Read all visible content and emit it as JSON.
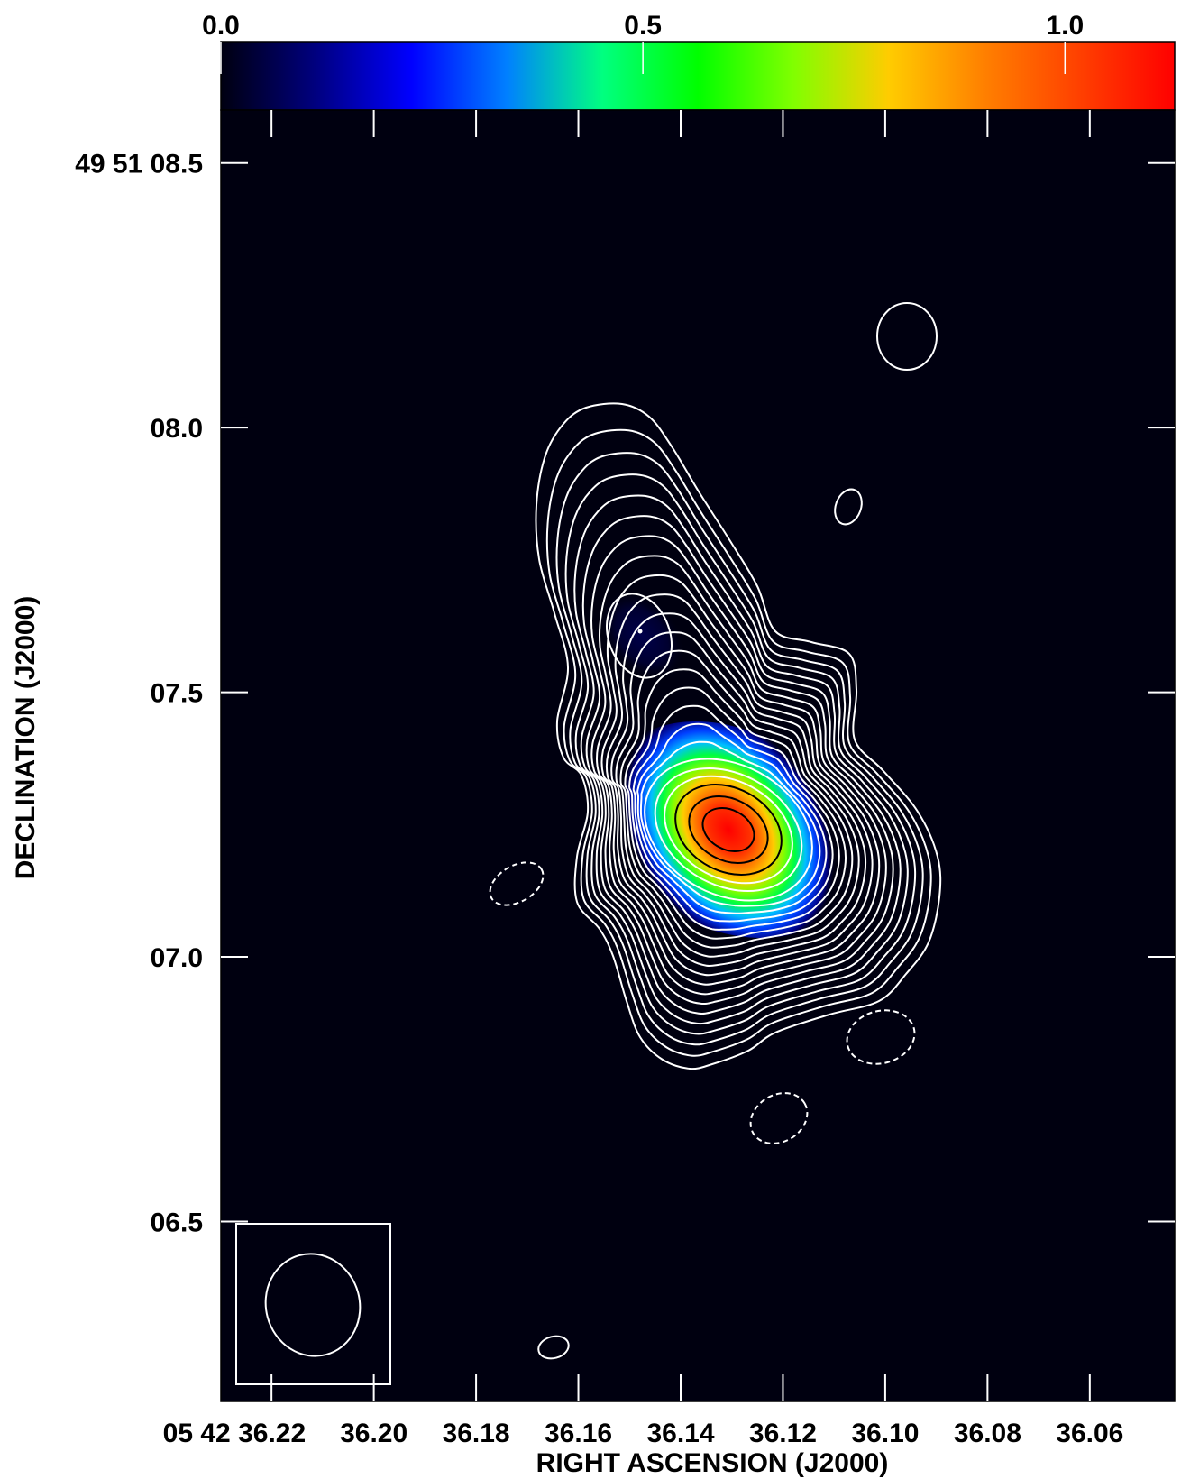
{
  "chart_data": {
    "type": "heatmap",
    "title": "",
    "colorbar": {
      "tick_labels": [
        "0.0",
        "0.5",
        "1.0"
      ],
      "ticks": [
        0.0,
        0.5,
        1.0
      ],
      "range": [
        0.0,
        1.13
      ],
      "colormap": [
        "#000010",
        "#000080",
        "#0000ff",
        "#0080ff",
        "#00ff80",
        "#00ff00",
        "#80ff00",
        "#ffcc00",
        "#ff8000",
        "#ff4000",
        "#ff0000"
      ]
    },
    "xlabel": "RIGHT ASCENSION (J2000)",
    "ylabel": "DECLINATION (J2000)",
    "x_axis": {
      "unit": "seconds of RA",
      "range": [
        36.2299,
        36.0434
      ],
      "reversed": true,
      "tick_values": [
        36.22,
        36.2,
        36.18,
        36.16,
        36.14,
        36.12,
        36.1,
        36.08,
        36.06
      ],
      "tick_labels": [
        "05 42 36.22",
        "36.20",
        "36.18",
        "36.16",
        "36.14",
        "36.12",
        "36.10",
        "36.08",
        "36.06"
      ]
    },
    "y_axis": {
      "unit": "arcsec of declination",
      "range": [
        6.16,
        8.6
      ],
      "tick_values": [
        8.5,
        8.0,
        7.5,
        7.0,
        6.5
      ],
      "tick_labels": [
        "49 51 08.5",
        "08.0",
        "07.5",
        "07.0",
        "06.5"
      ]
    },
    "background_color": "#000010",
    "emission_peak": {
      "ra": 36.1335,
      "dec": 7.24,
      "peak_value": 1.13
    },
    "secondary_peak": {
      "ra": 36.1529,
      "dec": 7.6
    },
    "contours": {
      "positive_color": "#ffffff",
      "inner_color": "#000000",
      "negative_style": "dashed"
    },
    "beam": {
      "ra": 36.2135,
      "dec": 6.33,
      "shape": "ellipse"
    }
  }
}
